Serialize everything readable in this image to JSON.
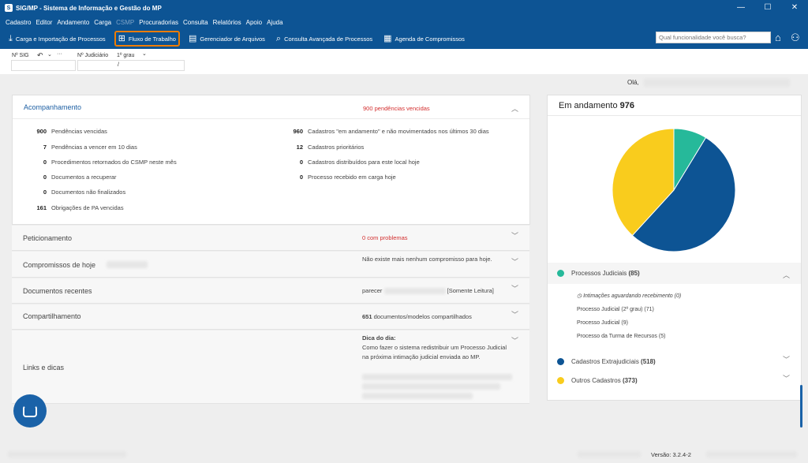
{
  "window": {
    "title": "SIG/MP - Sistema de Informação e Gestão do MP",
    "controls": [
      "—",
      "☐",
      "✕"
    ]
  },
  "menu": [
    "Cadastro",
    "Editor",
    "Andamento",
    "Carga",
    "CSMP",
    "Procuradorias",
    "Consulta",
    "Relatórios",
    "Apoio",
    "Ajuda"
  ],
  "toolbar": {
    "items": [
      {
        "label": "Carga e Importação de Processos",
        "icon": "download-icon"
      },
      {
        "label": "Fluxo de Trabalho",
        "icon": "workflow-icon"
      },
      {
        "label": "Gerenciador de Arquivos",
        "icon": "file-manager-icon"
      },
      {
        "label": "Consulta Avançada de Processos",
        "icon": "advanced-search-icon"
      },
      {
        "label": "Agenda de Compromissos",
        "icon": "calendar-icon"
      }
    ],
    "search_placeholder": "Qual funcionalidade você busca?"
  },
  "subbar": {
    "sig_label": "Nº SIG",
    "sig_value": "",
    "jud_label": "Nº Judiciário",
    "jud_grade": "1º grau",
    "jud_value": "/"
  },
  "greeting": "Olá,",
  "acompanhamento": {
    "title": "Acompanhamento",
    "overdue_count": "900",
    "overdue_text": "pendências vencidas",
    "left": [
      {
        "num": "900",
        "text": "Pendências vencidas"
      },
      {
        "num": "7",
        "text": "Pendências a vencer em 10 dias"
      },
      {
        "num": "0",
        "text": "Procedimentos retornados do CSMP neste mês"
      },
      {
        "num": "0",
        "text": "Documentos a recuperar"
      },
      {
        "num": "0",
        "text": "Documentos não finalizados"
      },
      {
        "num": "161",
        "text": "Obrigações de PA vencidas"
      }
    ],
    "right": [
      {
        "num": "960",
        "text": "Cadastros \"em andamento\" e não movimentados nos últimos 30 dias"
      },
      {
        "num": "12",
        "text": "Cadastros prioritários"
      },
      {
        "num": "0",
        "text": "Cadastros distribuídos para este local hoje"
      },
      {
        "num": "0",
        "text": "Processo recebido em carga hoje"
      }
    ]
  },
  "sections": {
    "peticionamento": {
      "title": "Peticionamento",
      "count": "0",
      "info": "com problemas"
    },
    "compromissos": {
      "title": "Compromissos de hoje",
      "info": "Não existe mais nenhum compromisso para hoje."
    },
    "documentos": {
      "title": "Documentos recentes",
      "prefix": "parecer",
      "suffix": "[Somente Leitura]"
    },
    "compartilhamento": {
      "title": "Compartilhamento",
      "count": "651",
      "info": "documentos/modelos compartilhados"
    },
    "links": {
      "title": "Links e dicas",
      "tip_title": "Dica do dia:",
      "tip_text": "Como fazer o sistema redistribuir um Processo Judicial na próxima intimação judicial enviada ao MP."
    }
  },
  "summary": {
    "title": "Em andamento",
    "total": "976",
    "groups": [
      {
        "name": "Processos Judiciais",
        "count": "(85)",
        "color": "#26b99a"
      },
      {
        "name": "Cadastros Extrajudiciais",
        "count": "(518)",
        "color": "#0d5494"
      },
      {
        "name": "Outros Cadastros",
        "count": "(373)",
        "color": "#f9cc1d"
      }
    ],
    "judicial_items": [
      "Intimações aguardando recebimento (0)",
      "Processo Judicial (2º grau) (71)",
      "Processo Judicial (9)",
      "Processo da Turma de Recursos (5)"
    ]
  },
  "chart_data": {
    "type": "pie",
    "categories": [
      "Processos Judiciais",
      "Cadastros Extrajudiciais",
      "Outros Cadastros"
    ],
    "values": [
      85,
      518,
      373
    ],
    "colors": [
      "#26b99a",
      "#0d5494",
      "#f9cc1d"
    ]
  },
  "footer": {
    "version": "Versão: 3.2.4-2"
  }
}
